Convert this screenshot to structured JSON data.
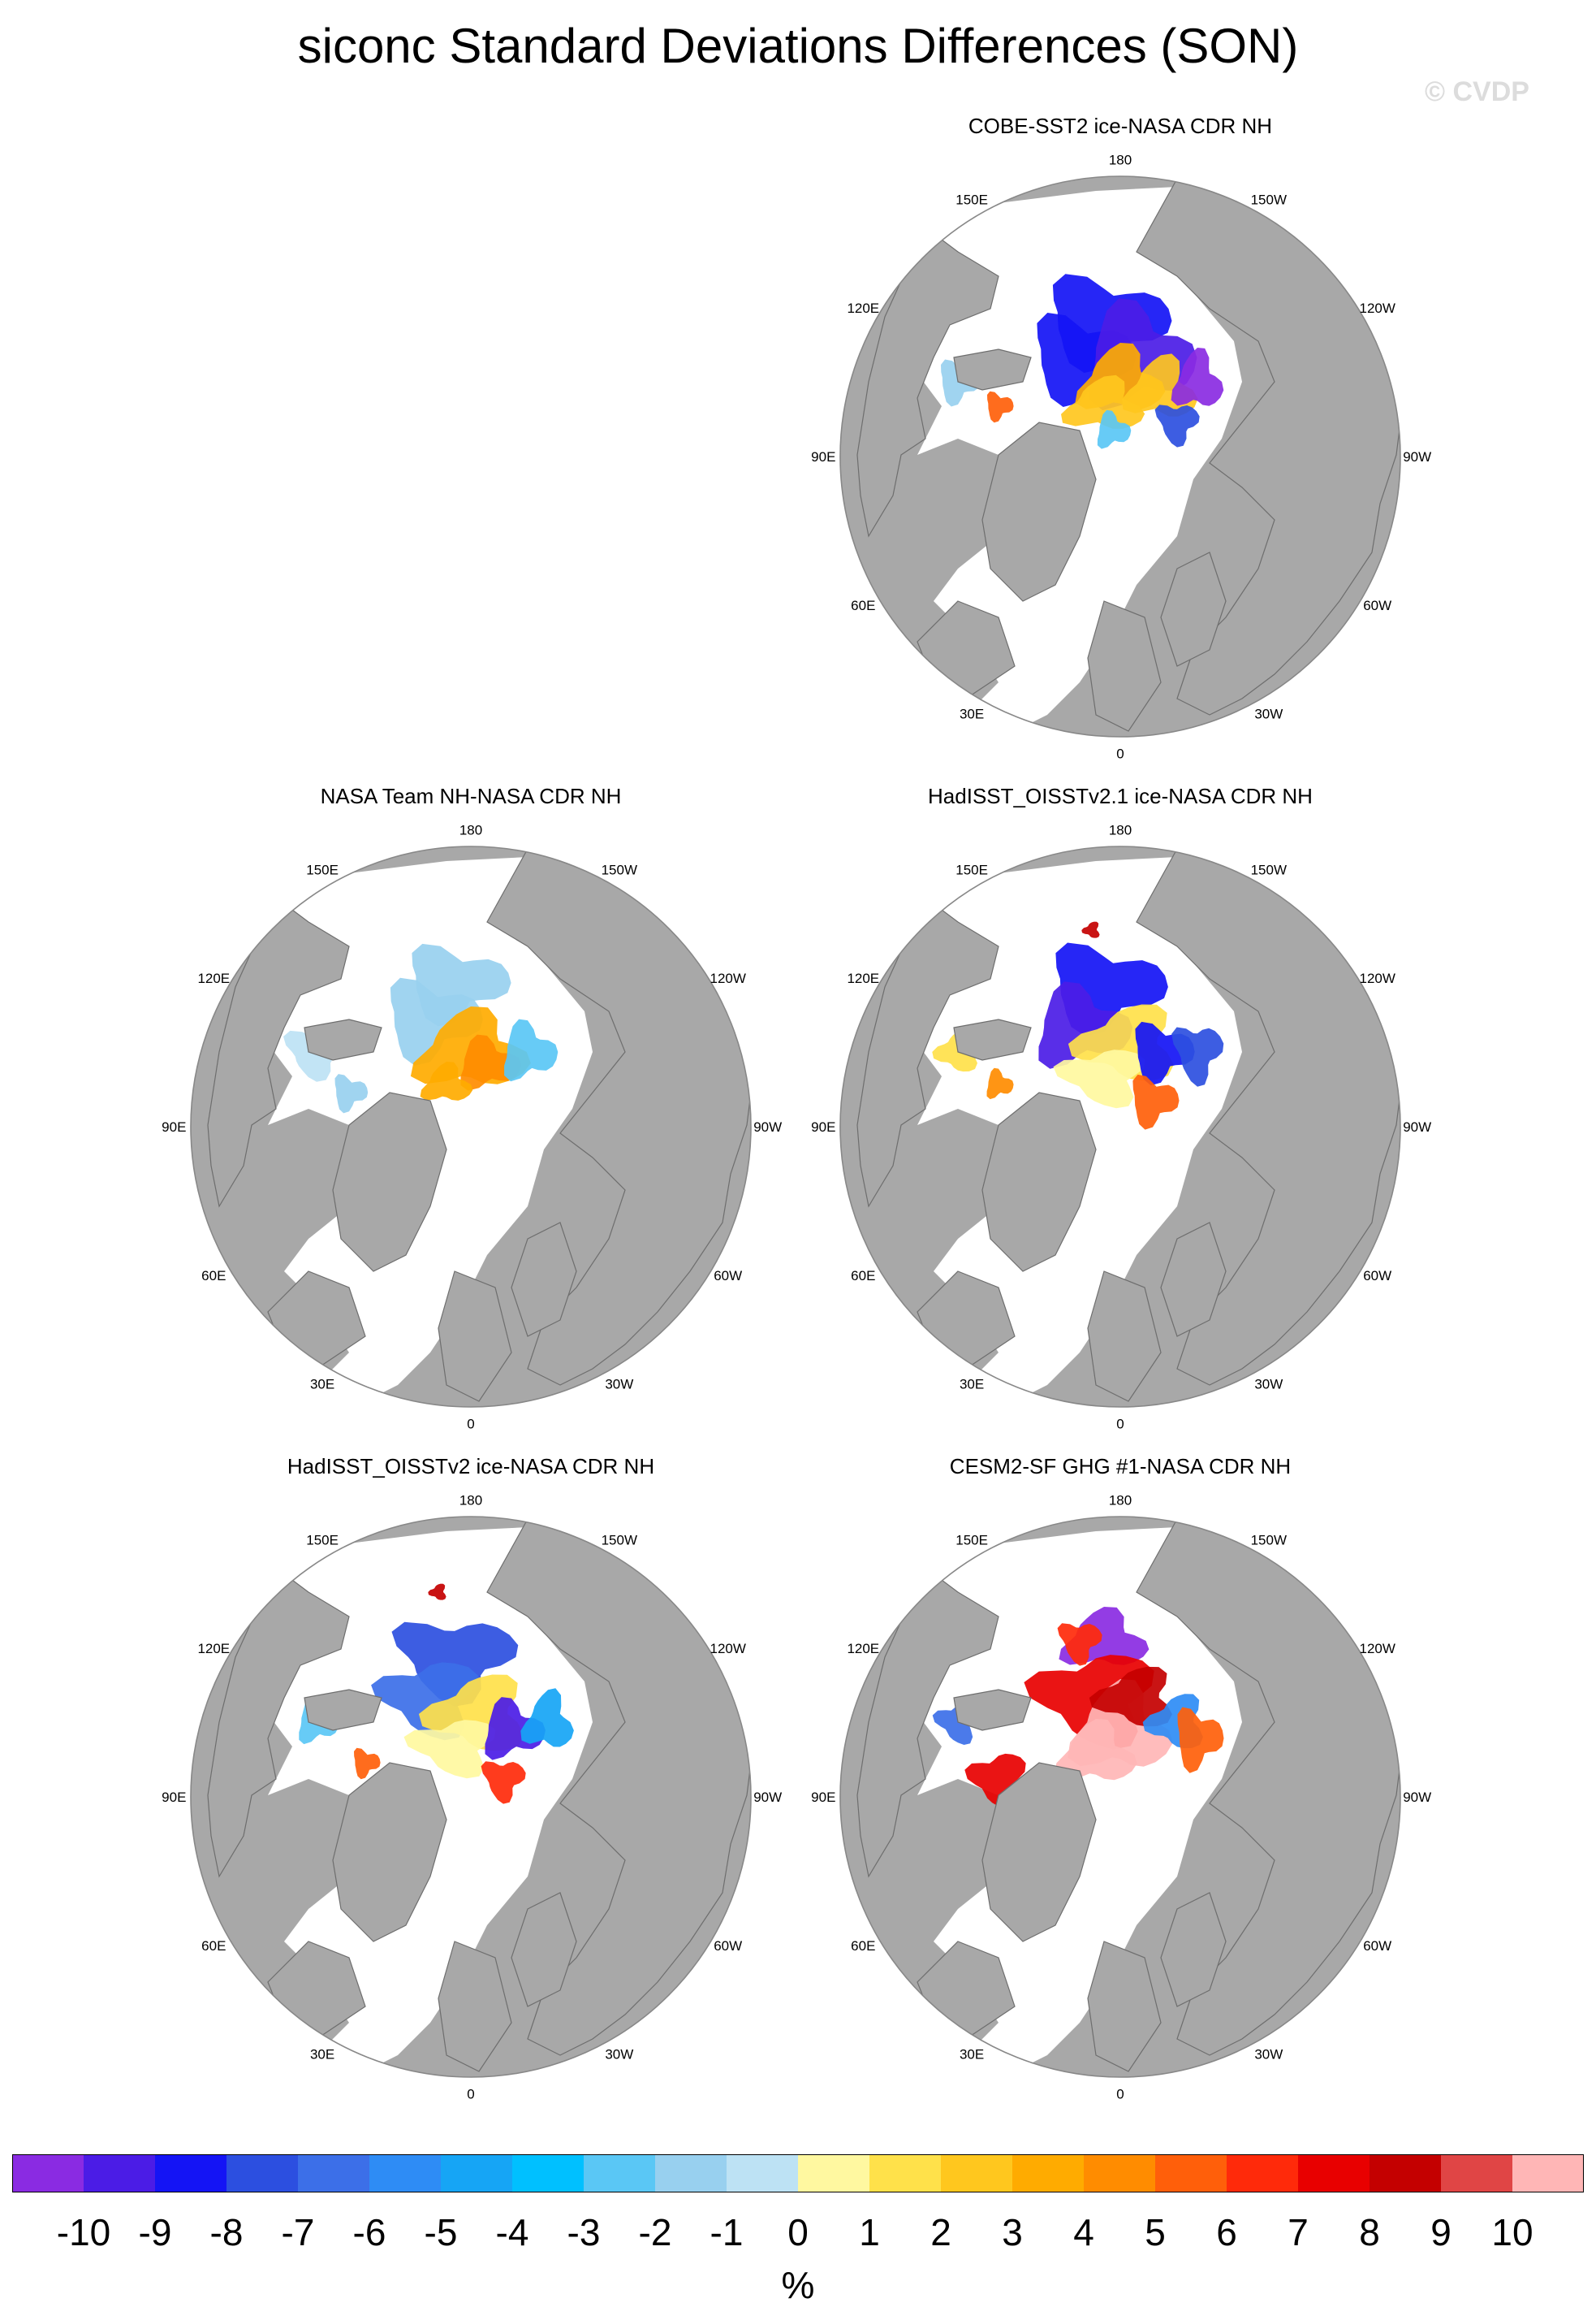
{
  "title": "siconc Standard Deviations Differences (SON)",
  "watermark": "© CVDP",
  "panels": [
    {
      "title": "COBE-SST2 ice-NASA CDR NH",
      "pattern": "cobe"
    },
    {
      "title": "NASA Team NH-NASA CDR NH",
      "pattern": "team"
    },
    {
      "title": "HadISST_OISSTv2.1 ice-NASA CDR NH",
      "pattern": "had21"
    },
    {
      "title": "HadISST_OISSTv2 ice-NASA CDR NH",
      "pattern": "had2"
    },
    {
      "title": "CESM2-SF GHG #1-NASA CDR NH",
      "pattern": "cesm"
    }
  ],
  "longitude_labels": [
    "180",
    "150E",
    "120E",
    "90E",
    "60E",
    "30E",
    "0",
    "30W",
    "60W",
    "90W",
    "120W",
    "150W"
  ],
  "colorbar": {
    "colors": [
      "#8a2be2",
      "#4b1ce6",
      "#1414f5",
      "#2c4fe0",
      "#3c6fe8",
      "#2e8cf5",
      "#16a5f5",
      "#00c0ff",
      "#5ac7f5",
      "#98d0ef",
      "#bde2f4",
      "#fff8a0",
      "#ffe14a",
      "#ffc71e",
      "#ffab00",
      "#ff8c00",
      "#ff5f0a",
      "#ff2a0a",
      "#e80000",
      "#c40000",
      "#e04545",
      "#ffb6b6"
    ],
    "tick_labels": [
      "-10",
      "-9",
      "-8",
      "-7",
      "-6",
      "-5",
      "-4",
      "-3",
      "-2",
      "-1",
      "0",
      "1",
      "2",
      "3",
      "4",
      "5",
      "6",
      "7",
      "8",
      "9",
      "10"
    ],
    "units": "%"
  }
}
